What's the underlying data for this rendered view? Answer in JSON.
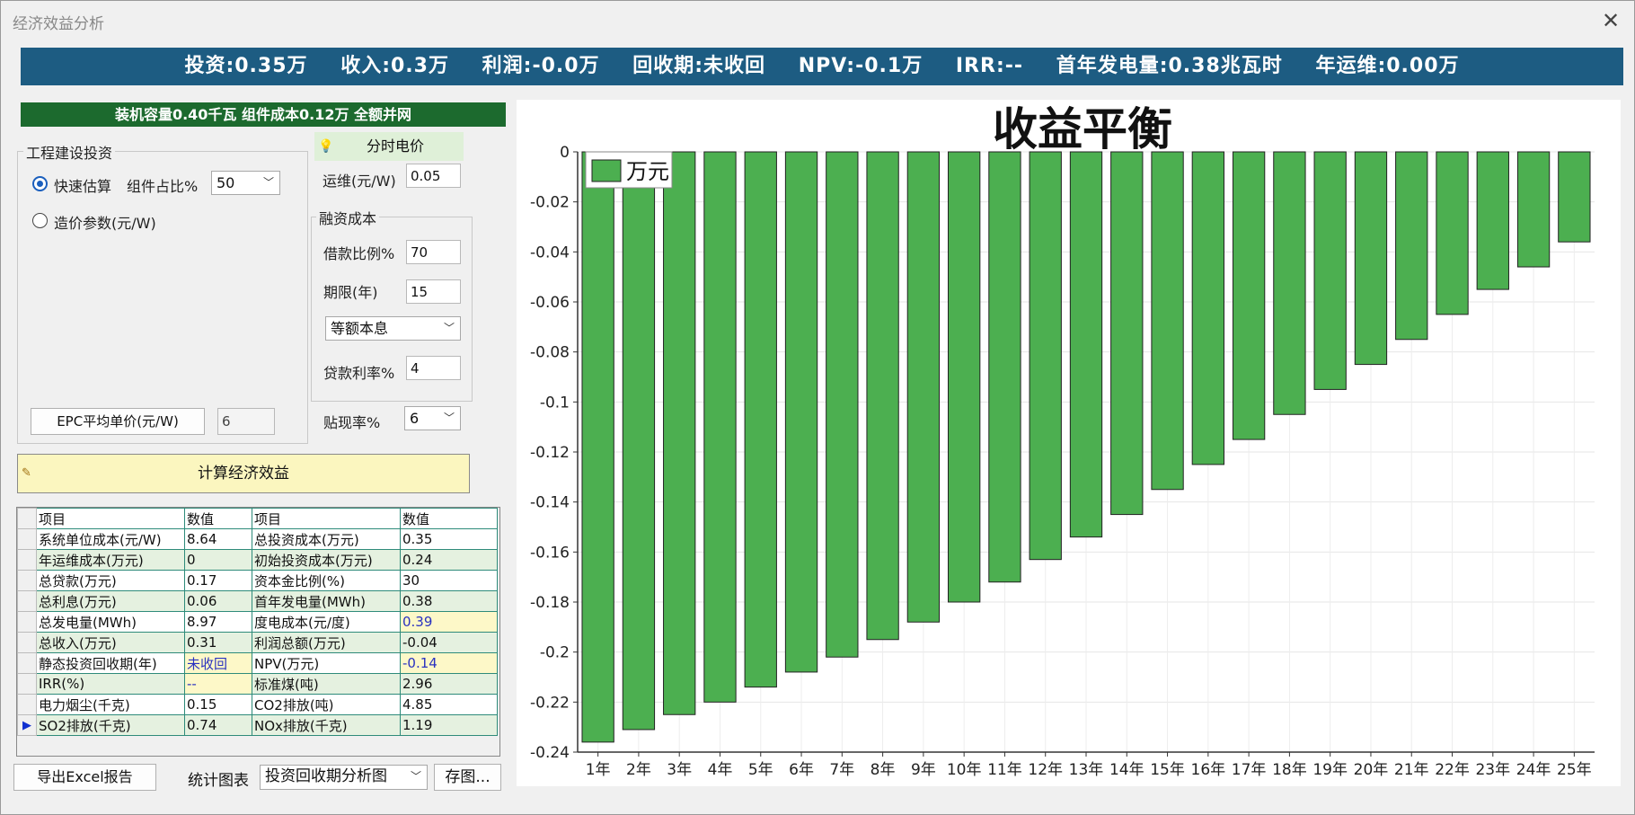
{
  "window": {
    "title": "经济效益分析",
    "close_glyph": "✕"
  },
  "summary": {
    "items": [
      "投资:0.35万",
      "收入:0.3万",
      "利润:-0.0万",
      "回收期:未收回",
      "NPV:-0.1万",
      "IRR:--",
      "首年发电量:0.38兆瓦时",
      "年运维:0.00万"
    ]
  },
  "capacity_bar": "装机容量0.40千瓦 组件成本0.12万 全额并网",
  "investment": {
    "group_label": "工程建设投资",
    "quick_estimate_label": "快速估算",
    "component_ratio_label": "组件占比%",
    "component_ratio_value": "50",
    "cost_param_label": "造价参数(元/W)",
    "epc_button": "EPC平均单价(元/W)",
    "epc_value": "6"
  },
  "tou": {
    "label": "分时电价",
    "icon": "lightbulb-icon"
  },
  "om": {
    "label": "运维(元/W)",
    "value": "0.05"
  },
  "financing": {
    "group_label": "融资成本",
    "loan_ratio_label": "借款比例%",
    "loan_ratio_value": "70",
    "term_label": "期限(年)",
    "term_value": "15",
    "repay_method": "等额本息",
    "rate_label": "贷款利率%",
    "rate_value": "4"
  },
  "discount": {
    "label": "贴现率%",
    "value": "6"
  },
  "calc_button": "计算经济效益",
  "table": {
    "headers": [
      "项目",
      "数值",
      "项目",
      "数值"
    ],
    "rows": [
      [
        "系统单位成本(元/W)",
        "8.64",
        "总投资成本(万元)",
        "0.35"
      ],
      [
        "年运维成本(万元)",
        "0",
        "初始投资成本(万元)",
        "0.24"
      ],
      [
        "总贷款(万元)",
        "0.17",
        "资本金比例(%)",
        "30"
      ],
      [
        "总利息(万元)",
        "0.06",
        "首年发电量(MWh)",
        "0.38"
      ],
      [
        "总发电量(MWh)",
        "8.97",
        "度电成本(元/度)",
        "0.39"
      ],
      [
        "总收入(万元)",
        "0.31",
        "利润总额(万元)",
        "-0.04"
      ],
      [
        "静态投资回收期(年)",
        "未收回",
        "NPV(万元)",
        "-0.14"
      ],
      [
        "IRR(%)",
        "--",
        "标准煤(吨)",
        "2.96"
      ],
      [
        "电力烟尘(千克)",
        "0.15",
        "CO2排放(吨)",
        "4.85"
      ],
      [
        "SO2排放(千克)",
        "0.74",
        "NOx排放(千克)",
        "1.19"
      ]
    ],
    "current_row_marker": "▶"
  },
  "footer": {
    "export_button": "导出Excel报告",
    "chart_select_label": "统计图表",
    "chart_select_value": "投资回收期分析图",
    "save_button": "存图..."
  },
  "chart_data": {
    "type": "bar",
    "title": "收益平衡",
    "legend": [
      "万元"
    ],
    "legend_position": "top-left",
    "bar_color": "#4caf50",
    "categories": [
      "1年",
      "2年",
      "3年",
      "4年",
      "5年",
      "6年",
      "7年",
      "8年",
      "9年",
      "10年",
      "11年",
      "12年",
      "13年",
      "14年",
      "15年",
      "16年",
      "17年",
      "18年",
      "19年",
      "20年",
      "21年",
      "22年",
      "23年",
      "24年",
      "25年"
    ],
    "values": [
      -0.236,
      -0.231,
      -0.225,
      -0.22,
      -0.214,
      -0.208,
      -0.202,
      -0.195,
      -0.188,
      -0.18,
      -0.172,
      -0.163,
      -0.154,
      -0.145,
      -0.135,
      -0.125,
      -0.115,
      -0.105,
      -0.095,
      -0.085,
      -0.075,
      -0.065,
      -0.055,
      -0.046,
      -0.036
    ],
    "y_ticks": [
      "0",
      "-0.02",
      "-0.04",
      "-0.06",
      "-0.08",
      "-0.1",
      "-0.12",
      "-0.14",
      "-0.16",
      "-0.18",
      "-0.2",
      "-0.22",
      "-0.24"
    ],
    "ylim": [
      -0.24,
      0
    ],
    "grid": true
  }
}
